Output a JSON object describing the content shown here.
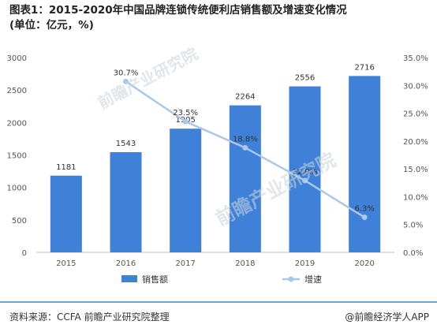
{
  "title": "图表1：2015-2020年中国品牌连锁传统便利店销售额及增速变化情况",
  "subtitle": "(单位：亿元，%)",
  "footer": {
    "source": "资料来源：CCFA 前瞻产业研究院整理",
    "credit": "@前瞻经济学人APP"
  },
  "watermarks": [
    "前瞻产业研究院",
    "前瞻产业研究院"
  ],
  "chart_data": {
    "type": "bar",
    "categories": [
      "2015",
      "2016",
      "2017",
      "2018",
      "2019",
      "2020"
    ],
    "series": [
      {
        "name": "销售额",
        "type": "bar",
        "axis": "left",
        "values": [
          1181,
          1543,
          1905,
          2264,
          2556,
          2716
        ],
        "labels": [
          "1181",
          "1543",
          "1905",
          "2264",
          "2556",
          "2716"
        ],
        "color": "#3f81d8"
      },
      {
        "name": "增速",
        "type": "line",
        "axis": "right",
        "values": [
          null,
          30.7,
          23.5,
          18.8,
          12.9,
          6.3
        ],
        "labels": [
          "",
          "30.7%",
          "23.5%",
          "18.8%",
          "12.9%",
          "6.3%"
        ],
        "color": "#a9c8ec"
      }
    ],
    "y_left": {
      "min": 0,
      "max": 3000,
      "ticks": [
        "0",
        "500",
        "1000",
        "1500",
        "2000",
        "2500",
        "3000"
      ]
    },
    "y_right": {
      "min": 0,
      "max": 35,
      "ticks": [
        "0.0%",
        "5.0%",
        "10.0%",
        "15.0%",
        "20.0%",
        "25.0%",
        "30.0%",
        "35.0%"
      ]
    },
    "grid": false,
    "legend_position": "bottom"
  }
}
